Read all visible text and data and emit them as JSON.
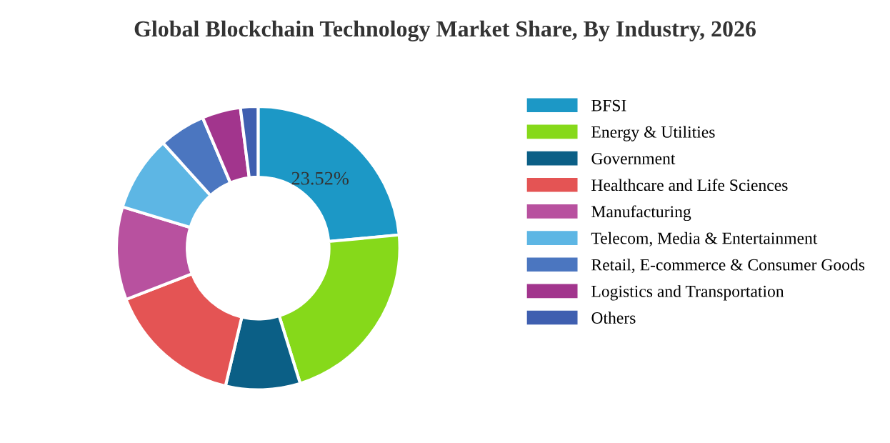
{
  "chart_data": {
    "type": "donut",
    "title": "Global Blockchain Technology Market Share, By Industry, 2026",
    "categories": [
      "BFSI",
      "Energy & Utilities",
      "Government",
      "Healthcare and Life Sciences",
      "Manufacturing",
      "Telecom, Media & Entertainment",
      "Retail, E-commerce & Consumer Goods",
      "Logistics and Transportation",
      "Others"
    ],
    "values": [
      23.52,
      21.68,
      8.5,
      15.4,
      10.6,
      8.6,
      5.3,
      4.4,
      2.0
    ],
    "colors": [
      "#1c98c6",
      "#86d91a",
      "#0b5f86",
      "#e45454",
      "#b8519f",
      "#5db6e4",
      "#4b76c0",
      "#a2358d",
      "#3f5fb0"
    ],
    "value_labels": [
      "23.52%",
      null,
      null,
      null,
      null,
      null,
      null,
      null,
      null
    ],
    "legend": "right"
  }
}
